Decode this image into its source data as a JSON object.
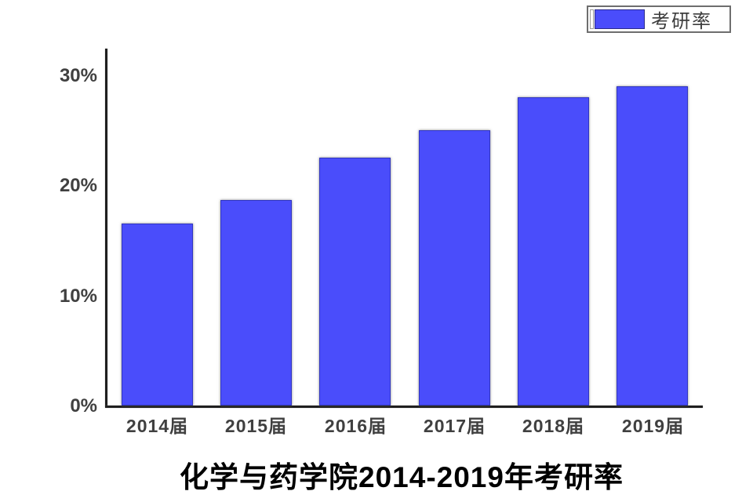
{
  "chart_data": {
    "type": "bar",
    "title": "化学与药学院2014-2019年考研率",
    "categories": [
      "2014届",
      "2015届",
      "2016届",
      "2017届",
      "2018届",
      "2019届"
    ],
    "series": [
      {
        "name": "考研率",
        "values": [
          16.5,
          18.7,
          22.5,
          25.0,
          28.0,
          29.0
        ]
      }
    ],
    "unit": "%",
    "ylim": [
      0,
      30
    ],
    "yticks": [
      {
        "value": 0,
        "label": "0%"
      },
      {
        "value": 10,
        "label": "10%"
      },
      {
        "value": 20,
        "label": "20%"
      },
      {
        "value": 30,
        "label": "30%"
      }
    ],
    "grid": false,
    "legend": {
      "position": "top-right",
      "label": "考研率"
    },
    "colors": {
      "bar_fill": "#4A4DFB",
      "bar_border": "#3136C0",
      "axis": "#1F1F1F",
      "tick_text": "#404040",
      "title_text": "#000000"
    }
  }
}
